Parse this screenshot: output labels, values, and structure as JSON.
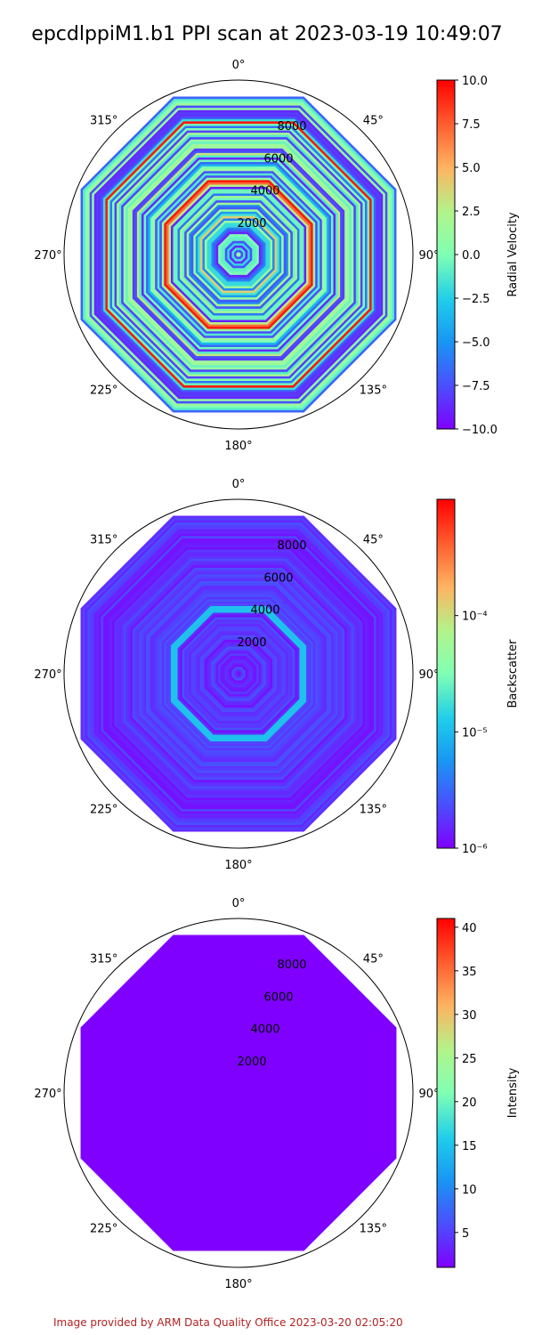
{
  "title": "epcdlppiM1.b1 PPI scan at 2023-03-19 10:49:07",
  "footer": "Image provided by ARM Data Quality Office 2023-03-20 02:05:20",
  "chart_data": [
    {
      "type": "polar-ppi",
      "theta_ticks": [
        "0°",
        "45°",
        "90°",
        "135°",
        "180°",
        "225°",
        "270°",
        "315°"
      ],
      "r_ticks": [
        2000,
        4000,
        6000,
        8000
      ],
      "r_max": 10000,
      "colorbar": {
        "label": "Radial Velocity",
        "scale": "linear",
        "range": [
          -10.0,
          10.0
        ],
        "ticks": [
          "10.0",
          "7.5",
          "5.0",
          "2.5",
          "0.0",
          "−2.5",
          "−5.0",
          "−7.5",
          "−10.0"
        ],
        "tick_values": [
          10,
          7.5,
          5,
          2.5,
          0,
          -2.5,
          -5,
          -7.5,
          -10
        ],
        "colormap": "rainbow"
      },
      "dominant_color": "#80ff9a"
    },
    {
      "type": "polar-ppi",
      "theta_ticks": [
        "0°",
        "45°",
        "90°",
        "135°",
        "180°",
        "225°",
        "270°",
        "315°"
      ],
      "r_ticks": [
        2000,
        4000,
        6000,
        8000
      ],
      "r_max": 10000,
      "colorbar": {
        "label": "Backscatter",
        "scale": "log",
        "range": [
          1e-06,
          0.001
        ],
        "ticks": [
          "10⁻⁴",
          "10⁻⁵",
          "10⁻⁶"
        ],
        "tick_values": [
          0.0001,
          1e-05,
          1e-06
        ],
        "colormap": "rainbow"
      },
      "dominant_color": "#5b2fff"
    },
    {
      "type": "polar-ppi",
      "theta_ticks": [
        "0°",
        "45°",
        "90°",
        "135°",
        "180°",
        "225°",
        "270°",
        "315°"
      ],
      "r_ticks": [
        2000,
        4000,
        6000,
        8000
      ],
      "r_max": 10000,
      "colorbar": {
        "label": "Intensity",
        "scale": "linear",
        "range": [
          1,
          41
        ],
        "ticks": [
          "40",
          "35",
          "30",
          "25",
          "20",
          "15",
          "10",
          "5"
        ],
        "tick_values": [
          40,
          35,
          30,
          25,
          20,
          15,
          10,
          5
        ],
        "colormap": "rainbow"
      },
      "dominant_color": "#8000ff"
    }
  ]
}
